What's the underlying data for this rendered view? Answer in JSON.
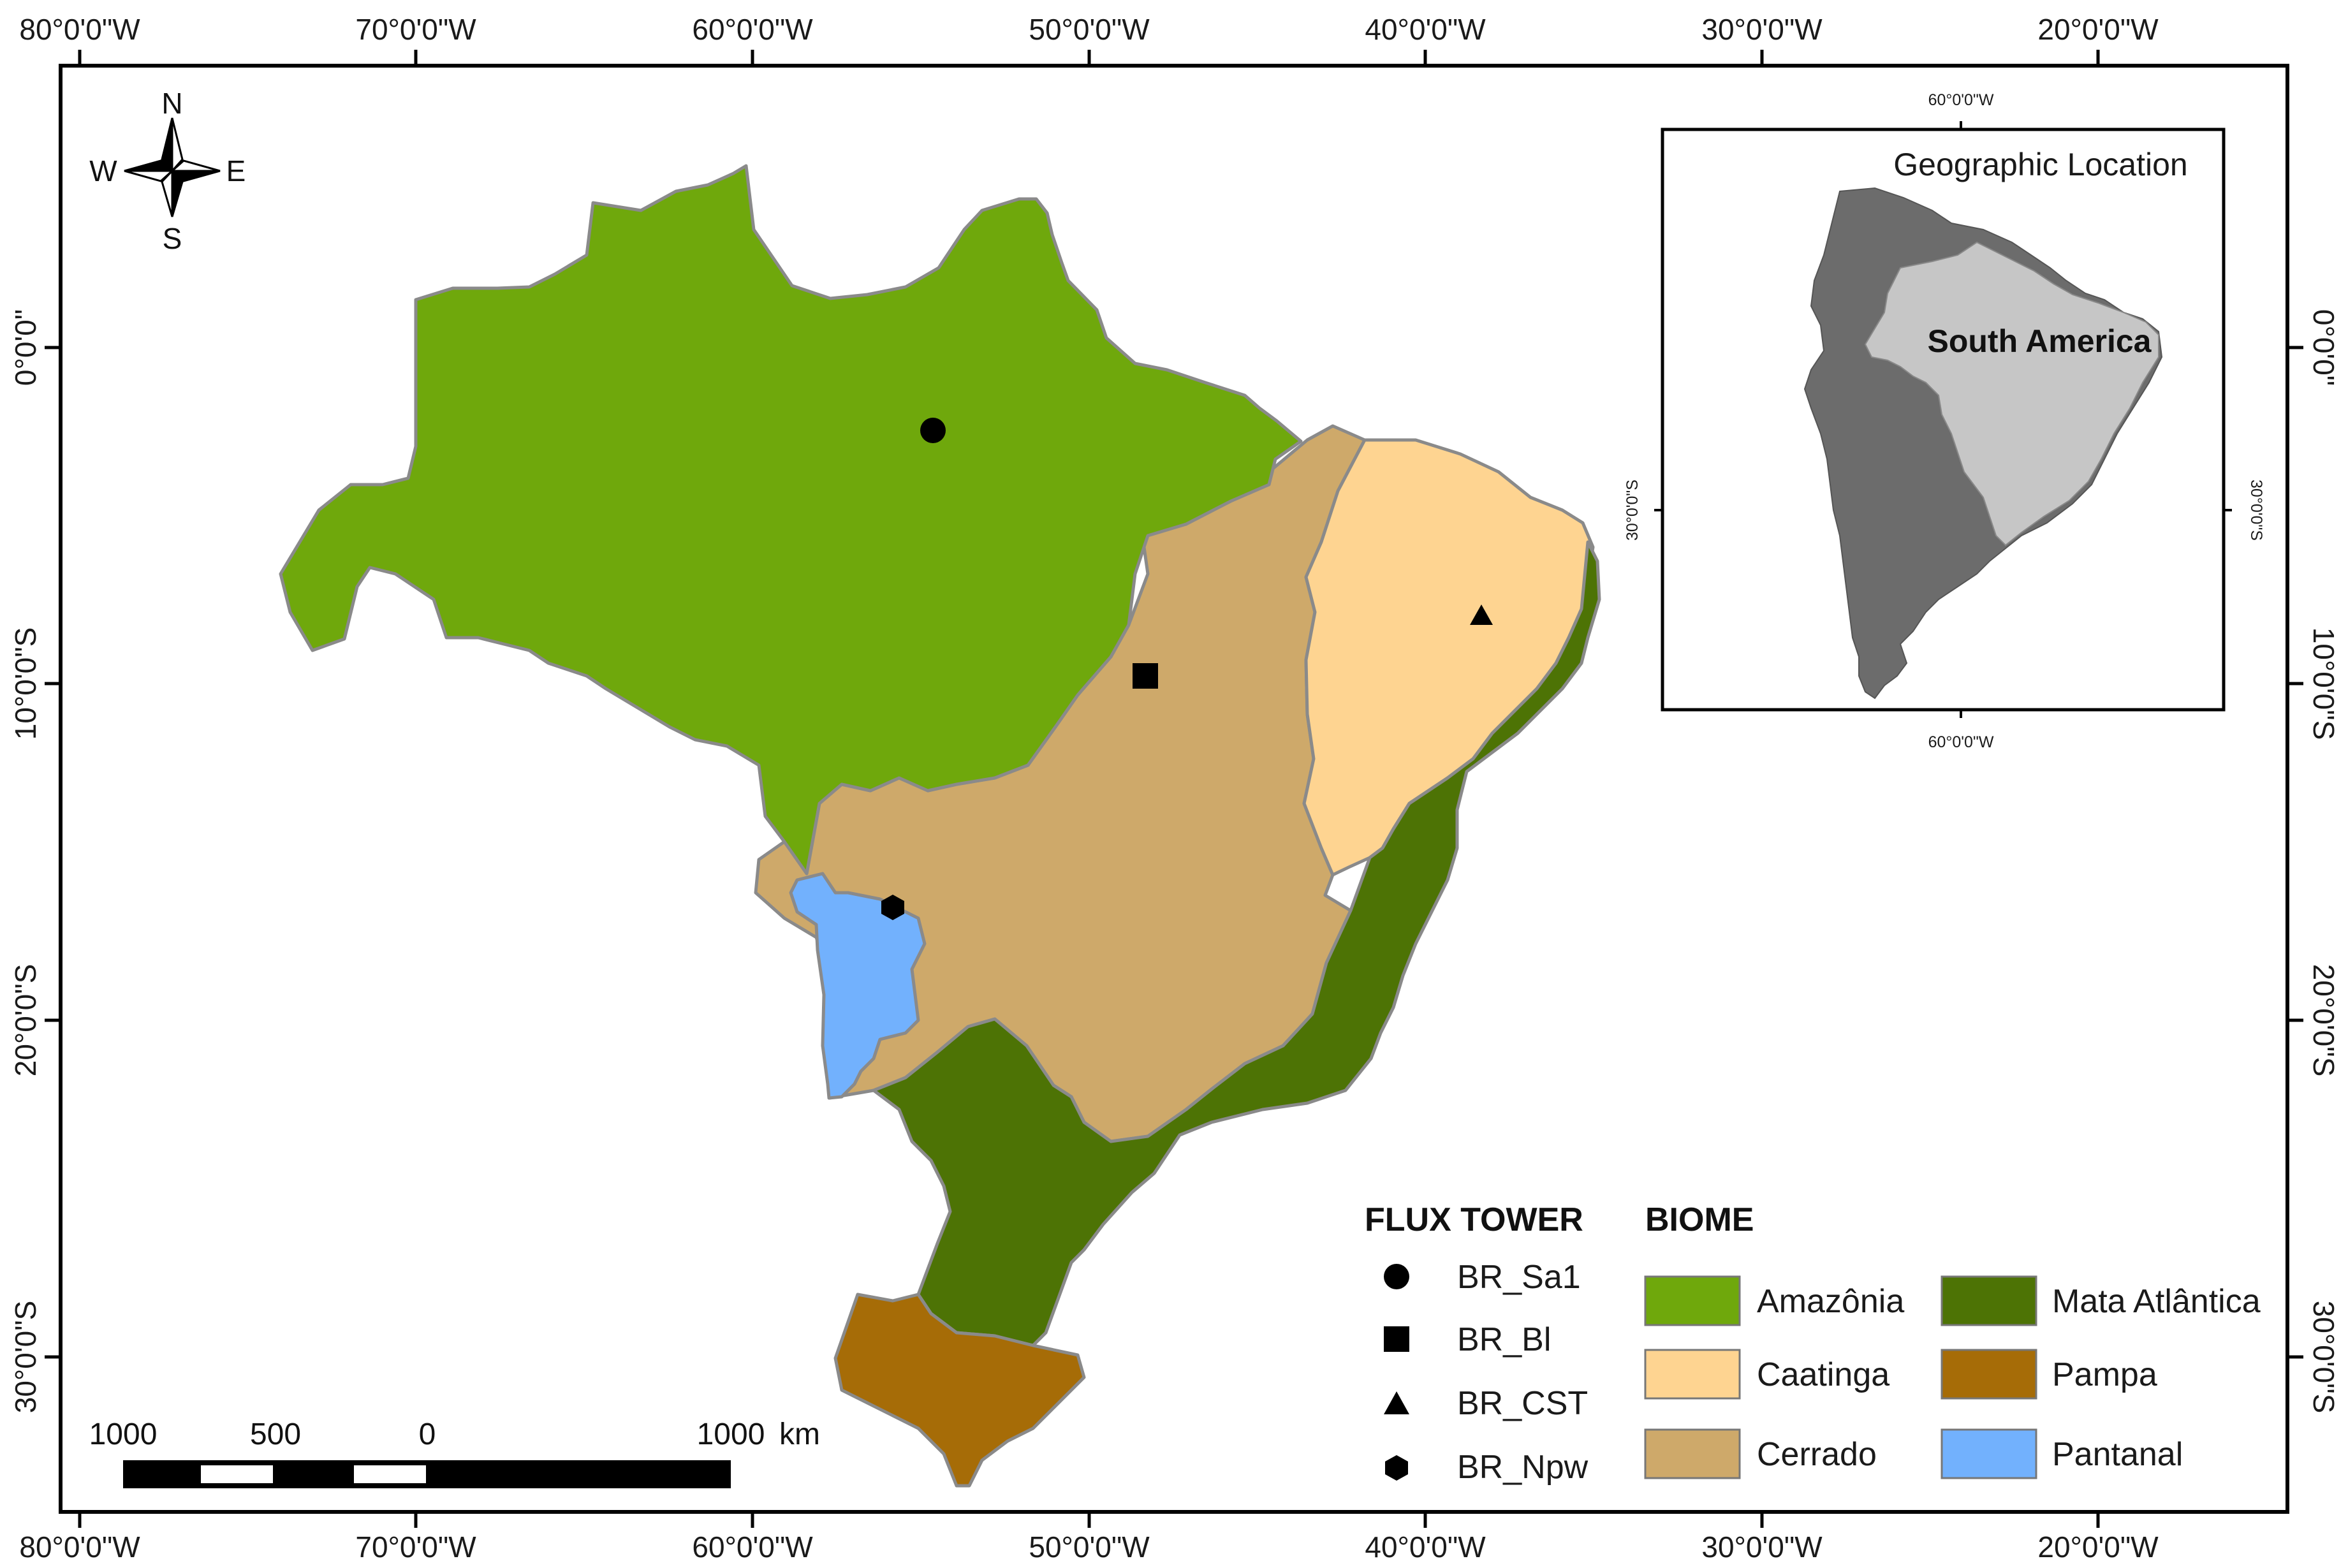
{
  "axes": {
    "top_ticks": [
      "80°0'0\"W",
      "70°0'0\"W",
      "60°0'0\"W",
      "50°0'0\"W",
      "40°0'0\"W",
      "30°0'0\"W",
      "20°0'0\"W"
    ],
    "bottom_ticks": [
      "80°0'0\"W",
      "70°0'0\"W",
      "60°0'0\"W",
      "50°0'0\"W",
      "40°0'0\"W",
      "30°0'0\"W",
      "20°0'0\"W"
    ],
    "left_ticks": [
      "0°0'0\"",
      "10°0'0\"S",
      "20°0'0\"S",
      "30°0'0\"S"
    ],
    "right_ticks": [
      "0°0'0\"",
      "10°0'0\"S",
      "20°0'0\"S",
      "30°0'0\"S"
    ]
  },
  "compass": {
    "n": "N",
    "s": "S",
    "e": "E",
    "w": "W"
  },
  "inset": {
    "title": "Geographic Location",
    "label": "South America",
    "tick_top": "60°0'0\"W",
    "tick_bottom": "60°0'0\"W",
    "tick_left": "30°0'0\"S",
    "tick_right": "30°0'0\"S"
  },
  "flux_tower_legend": {
    "title": "FLUX TOWER",
    "items": [
      {
        "symbol": "circle",
        "label": "BR_Sa1"
      },
      {
        "symbol": "square",
        "label": "BR_Bl"
      },
      {
        "symbol": "triangle",
        "label": "BR_CST"
      },
      {
        "symbol": "hexagon",
        "label": "BR_Npw"
      }
    ]
  },
  "biome_legend": {
    "title": "BIOME",
    "items": [
      {
        "label": "Amazônia",
        "color": "#6fa80c"
      },
      {
        "label": "Caatinga",
        "color": "#fed491"
      },
      {
        "label": "Cerrado",
        "color": "#cea96a"
      },
      {
        "label": "Mata Atlântica",
        "color": "#4d7305"
      },
      {
        "label": "Pampa",
        "color": "#a66c07"
      },
      {
        "label": "Pantanal",
        "color": "#72b1fd"
      }
    ]
  },
  "scale_bar": {
    "labels": [
      "1000",
      "500",
      "0",
      "1000"
    ],
    "unit": "km"
  }
}
